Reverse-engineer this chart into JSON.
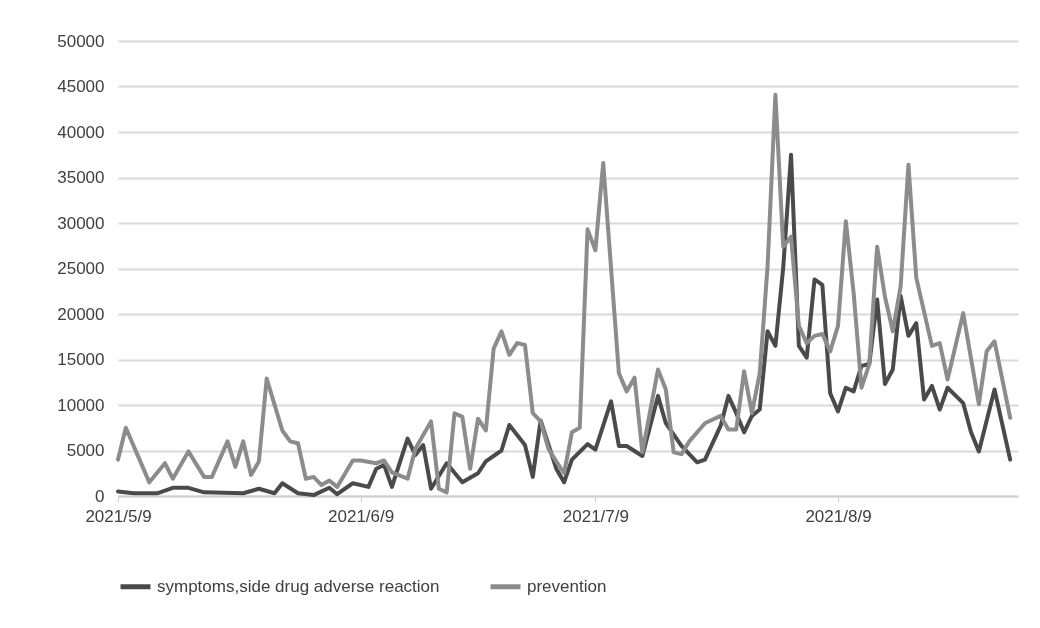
{
  "chart_data": {
    "type": "line",
    "xlim": [
      "2021-05-09",
      "2021-09-01"
    ],
    "xticks": [
      {
        "value": "2021-05-09",
        "label": "2021/5/9"
      },
      {
        "value": "2021-06-09",
        "label": "2021/6/9"
      },
      {
        "value": "2021-07-09",
        "label": "2021/7/9"
      },
      {
        "value": "2021-08-09",
        "label": "2021/8/9"
      }
    ],
    "ylim": [
      0,
      50000
    ],
    "yticks": [
      0,
      5000,
      10000,
      15000,
      20000,
      25000,
      30000,
      35000,
      40000,
      45000,
      50000
    ],
    "grid": "y",
    "legend": "bottom",
    "line_style": "solid",
    "marker": "none",
    "series": [
      {
        "name": "symptoms,side drug adverse reaction",
        "color": "#4a4a4a",
        "x": [
          "2021-05-09",
          "2021-05-11",
          "2021-05-14",
          "2021-05-16",
          "2021-05-18",
          "2021-05-20",
          "2021-05-25",
          "2021-05-27",
          "2021-05-29",
          "2021-05-30",
          "2021-06-01",
          "2021-06-03",
          "2021-06-05",
          "2021-06-06",
          "2021-06-08",
          "2021-06-10",
          "2021-06-11",
          "2021-06-12",
          "2021-06-13",
          "2021-06-15",
          "2021-06-16",
          "2021-06-17",
          "2021-06-18",
          "2021-06-20",
          "2021-06-22",
          "2021-06-24",
          "2021-06-25",
          "2021-06-27",
          "2021-06-28",
          "2021-06-30",
          "2021-07-01",
          "2021-07-02",
          "2021-07-04",
          "2021-07-05",
          "2021-07-06",
          "2021-07-08",
          "2021-07-09",
          "2021-07-11",
          "2021-07-12",
          "2021-07-13",
          "2021-07-15",
          "2021-07-17",
          "2021-07-18",
          "2021-07-20",
          "2021-07-22",
          "2021-07-23",
          "2021-07-25",
          "2021-07-26",
          "2021-07-27",
          "2021-07-28",
          "2021-07-29",
          "2021-07-30",
          "2021-07-31",
          "2021-08-01",
          "2021-08-02",
          "2021-08-03",
          "2021-08-04",
          "2021-08-05",
          "2021-08-06",
          "2021-08-07",
          "2021-08-08",
          "2021-08-09",
          "2021-08-10",
          "2021-08-11",
          "2021-08-12",
          "2021-08-13",
          "2021-08-14",
          "2021-08-15",
          "2021-08-16",
          "2021-08-17",
          "2021-08-18",
          "2021-08-19",
          "2021-08-20",
          "2021-08-21",
          "2021-08-22",
          "2021-08-23",
          "2021-08-25",
          "2021-08-26",
          "2021-08-27",
          "2021-08-29",
          "2021-08-31"
        ],
        "values": [
          500,
          300,
          300,
          900,
          900,
          400,
          300,
          800,
          300,
          1400,
          300,
          100,
          900,
          200,
          1400,
          1000,
          3000,
          3400,
          1000,
          6300,
          4500,
          5600,
          800,
          3600,
          1500,
          2500,
          3800,
          5000,
          7800,
          5600,
          2100,
          8300,
          3000,
          1500,
          4000,
          5700,
          5100,
          10400,
          5500,
          5500,
          4400,
          11000,
          8000,
          5500,
          3700,
          4000,
          7700,
          11000,
          9100,
          7000,
          8800,
          9500,
          18100,
          16500,
          25100,
          37500,
          16500,
          15200,
          23800,
          23200,
          11300,
          9300,
          11900,
          11500,
          14300,
          14500,
          21600,
          12300,
          13900,
          22000,
          17600,
          19000,
          10600,
          12100,
          9500,
          11900,
          10200,
          7000,
          4900,
          11700,
          4000
        ]
      },
      {
        "name": "prevention",
        "color": "#8c8c8c",
        "x": [
          "2021-05-09",
          "2021-05-10",
          "2021-05-12",
          "2021-05-13",
          "2021-05-15",
          "2021-05-16",
          "2021-05-18",
          "2021-05-20",
          "2021-05-21",
          "2021-05-23",
          "2021-05-24",
          "2021-05-25",
          "2021-05-26",
          "2021-05-27",
          "2021-05-28",
          "2021-05-30",
          "2021-05-31",
          "2021-06-01",
          "2021-06-02",
          "2021-06-03",
          "2021-06-04",
          "2021-06-05",
          "2021-06-06",
          "2021-06-08",
          "2021-06-09",
          "2021-06-11",
          "2021-06-12",
          "2021-06-13",
          "2021-06-15",
          "2021-06-16",
          "2021-06-18",
          "2021-06-19",
          "2021-06-20",
          "2021-06-21",
          "2021-06-22",
          "2021-06-23",
          "2021-06-24",
          "2021-06-25",
          "2021-06-26",
          "2021-06-27",
          "2021-06-28",
          "2021-06-29",
          "2021-06-30",
          "2021-07-01",
          "2021-07-02",
          "2021-07-03",
          "2021-07-04",
          "2021-07-05",
          "2021-07-06",
          "2021-07-07",
          "2021-07-08",
          "2021-07-09",
          "2021-07-10",
          "2021-07-12",
          "2021-07-13",
          "2021-07-14",
          "2021-07-15",
          "2021-07-17",
          "2021-07-18",
          "2021-07-19",
          "2021-07-20",
          "2021-07-21",
          "2021-07-23",
          "2021-07-25",
          "2021-07-26",
          "2021-07-27",
          "2021-07-28",
          "2021-07-29",
          "2021-07-30",
          "2021-07-31",
          "2021-08-01",
          "2021-08-02",
          "2021-08-03",
          "2021-08-04",
          "2021-08-05",
          "2021-08-06",
          "2021-08-07",
          "2021-08-08",
          "2021-08-09",
          "2021-08-10",
          "2021-08-11",
          "2021-08-12",
          "2021-08-13",
          "2021-08-14",
          "2021-08-15",
          "2021-08-16",
          "2021-08-17",
          "2021-08-18",
          "2021-08-19",
          "2021-08-21",
          "2021-08-22",
          "2021-08-23",
          "2021-08-25",
          "2021-08-27",
          "2021-08-28",
          "2021-08-29",
          "2021-08-31"
        ],
        "values": [
          4000,
          7500,
          3500,
          1500,
          3600,
          1900,
          4900,
          2100,
          2100,
          6000,
          3200,
          6000,
          2300,
          3800,
          12900,
          7200,
          6000,
          5800,
          1900,
          2100,
          1200,
          1700,
          1000,
          3900,
          3900,
          3600,
          3900,
          2600,
          1900,
          5200,
          8200,
          800,
          400,
          9100,
          8700,
          3000,
          8500,
          7200,
          16200,
          18100,
          15500,
          16800,
          16600,
          9100,
          8200,
          5200,
          3800,
          2500,
          7000,
          7500,
          29300,
          27000,
          36600,
          13500,
          11500,
          13000,
          4800,
          13900,
          11700,
          4800,
          4600,
          6000,
          8000,
          8800,
          7300,
          7300,
          13700,
          9100,
          13500,
          25200,
          44100,
          27400,
          28500,
          18700,
          16800,
          17600,
          17800,
          15900,
          18700,
          30200,
          22300,
          11900,
          14500,
          27400,
          21900,
          18100,
          23000,
          36400,
          24000,
          16500,
          16800,
          12800,
          20100,
          10100,
          15900,
          17000,
          8600
        ]
      }
    ]
  }
}
